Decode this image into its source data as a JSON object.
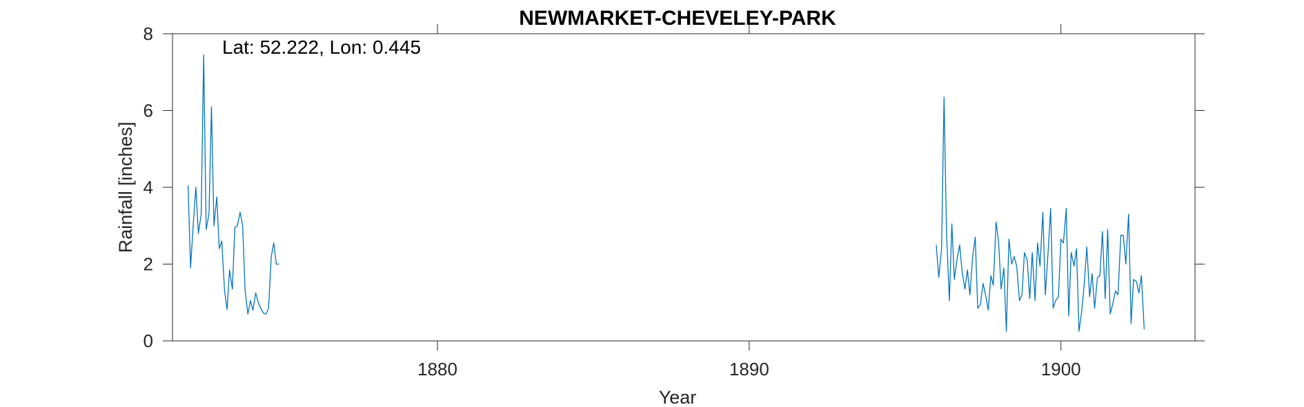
{
  "chart_data": {
    "type": "line",
    "title": "NEWMARKET-CHEVELEY-PARK",
    "xlabel": "Year",
    "ylabel": "Rainfall [inches]",
    "annotation": "Lat: 52.222, Lon: 0.445",
    "xlim": [
      1871.5,
      1904.3
    ],
    "ylim": [
      0,
      8
    ],
    "xticks": [
      1880,
      1890,
      1900
    ],
    "yticks": [
      0,
      2,
      4,
      6,
      8
    ],
    "grid": false,
    "line_color": "#0072BD",
    "series": [
      {
        "segments": [
          [
            [
              1872.0,
              4.05
            ],
            [
              1872.08,
              1.9
            ],
            [
              1872.17,
              3.1
            ],
            [
              1872.25,
              4.0
            ],
            [
              1872.33,
              2.8
            ],
            [
              1872.42,
              3.3
            ],
            [
              1872.5,
              7.45
            ],
            [
              1872.58,
              2.9
            ],
            [
              1872.67,
              3.3
            ],
            [
              1872.75,
              6.1
            ],
            [
              1872.83,
              3.0
            ],
            [
              1872.92,
              3.75
            ],
            [
              1873.0,
              2.4
            ],
            [
              1873.08,
              2.6
            ],
            [
              1873.17,
              1.3
            ],
            [
              1873.25,
              0.82
            ],
            [
              1873.33,
              1.85
            ],
            [
              1873.42,
              1.35
            ],
            [
              1873.5,
              2.95
            ],
            [
              1873.58,
              3.0
            ],
            [
              1873.67,
              3.35
            ],
            [
              1873.75,
              3.0
            ],
            [
              1873.83,
              1.3
            ],
            [
              1873.92,
              0.7
            ],
            [
              1874.0,
              1.05
            ],
            [
              1874.08,
              0.8
            ],
            [
              1874.17,
              1.25
            ],
            [
              1874.25,
              1.0
            ],
            [
              1874.33,
              0.85
            ],
            [
              1874.42,
              0.72
            ],
            [
              1874.5,
              0.7
            ],
            [
              1874.58,
              0.85
            ],
            [
              1874.67,
              2.2
            ],
            [
              1874.75,
              2.55
            ],
            [
              1874.83,
              2.0
            ],
            [
              1874.92,
              2.0
            ]
          ],
          [
            [
              1896.0,
              2.5
            ],
            [
              1896.08,
              1.65
            ],
            [
              1896.17,
              2.4
            ],
            [
              1896.25,
              6.35
            ],
            [
              1896.33,
              2.8
            ],
            [
              1896.42,
              1.05
            ],
            [
              1896.5,
              3.05
            ],
            [
              1896.58,
              1.6
            ],
            [
              1896.67,
              2.15
            ],
            [
              1896.75,
              2.5
            ],
            [
              1896.83,
              1.8
            ],
            [
              1896.92,
              1.35
            ],
            [
              1897.0,
              1.85
            ],
            [
              1897.08,
              1.2
            ],
            [
              1897.17,
              2.2
            ],
            [
              1897.25,
              2.7
            ],
            [
              1897.33,
              0.85
            ],
            [
              1897.42,
              0.95
            ],
            [
              1897.5,
              1.5
            ],
            [
              1897.58,
              1.2
            ],
            [
              1897.67,
              0.8
            ],
            [
              1897.75,
              1.7
            ],
            [
              1897.83,
              1.45
            ],
            [
              1897.92,
              3.1
            ],
            [
              1898.0,
              2.6
            ],
            [
              1898.08,
              1.35
            ],
            [
              1898.17,
              1.9
            ],
            [
              1898.25,
              0.25
            ],
            [
              1898.33,
              2.65
            ],
            [
              1898.42,
              2.0
            ],
            [
              1898.5,
              2.2
            ],
            [
              1898.58,
              1.95
            ],
            [
              1898.67,
              1.05
            ],
            [
              1898.75,
              1.2
            ],
            [
              1898.83,
              2.3
            ],
            [
              1898.92,
              2.1
            ],
            [
              1899.0,
              1.1
            ],
            [
              1899.08,
              2.3
            ],
            [
              1899.17,
              1.05
            ],
            [
              1899.25,
              2.55
            ],
            [
              1899.33,
              1.95
            ],
            [
              1899.42,
              3.35
            ],
            [
              1899.5,
              1.2
            ],
            [
              1899.58,
              2.2
            ],
            [
              1899.67,
              3.45
            ],
            [
              1899.75,
              0.85
            ],
            [
              1899.83,
              1.05
            ],
            [
              1899.92,
              1.15
            ],
            [
              1900.0,
              2.65
            ],
            [
              1900.08,
              2.55
            ],
            [
              1900.17,
              3.45
            ],
            [
              1900.25,
              0.65
            ],
            [
              1900.33,
              2.3
            ],
            [
              1900.42,
              1.95
            ],
            [
              1900.5,
              2.4
            ],
            [
              1900.58,
              0.25
            ],
            [
              1900.67,
              0.8
            ],
            [
              1900.75,
              1.5
            ],
            [
              1900.83,
              2.45
            ],
            [
              1900.92,
              1.15
            ],
            [
              1901.0,
              1.75
            ],
            [
              1901.08,
              0.85
            ],
            [
              1901.17,
              1.65
            ],
            [
              1901.25,
              1.7
            ],
            [
              1901.33,
              2.85
            ],
            [
              1901.42,
              1.1
            ],
            [
              1901.5,
              2.9
            ],
            [
              1901.58,
              0.7
            ],
            [
              1901.67,
              1.0
            ],
            [
              1901.75,
              1.3
            ],
            [
              1901.83,
              1.2
            ],
            [
              1901.92,
              2.75
            ],
            [
              1902.0,
              2.75
            ],
            [
              1902.08,
              2.0
            ],
            [
              1902.17,
              3.3
            ],
            [
              1902.25,
              0.45
            ],
            [
              1902.33,
              1.6
            ],
            [
              1902.42,
              1.55
            ],
            [
              1902.5,
              1.25
            ],
            [
              1902.58,
              1.7
            ],
            [
              1902.67,
              0.3
            ]
          ]
        ]
      }
    ]
  }
}
